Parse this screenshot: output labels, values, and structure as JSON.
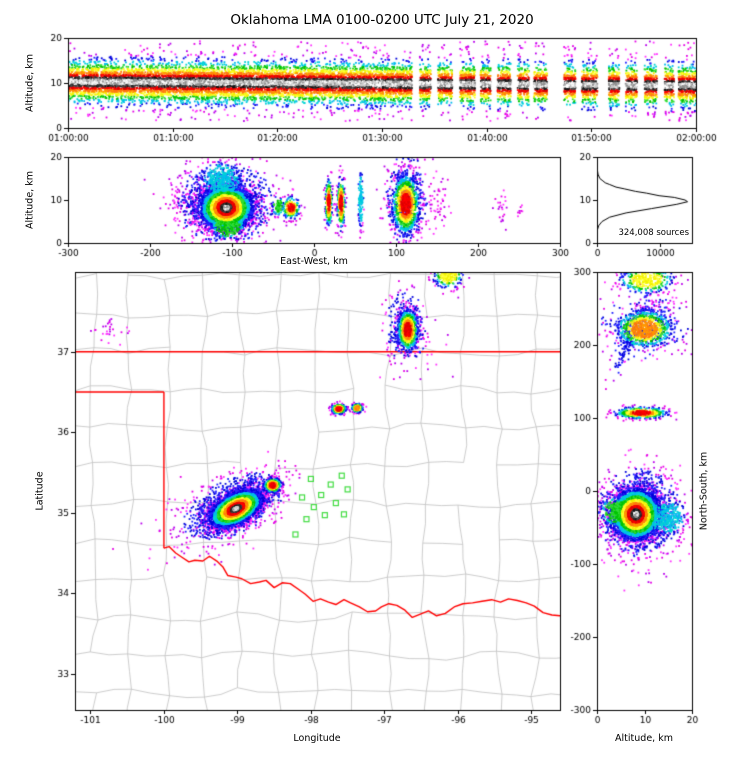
{
  "title": "Oklahoma LMA 0100-0200 UTC July 21, 2020",
  "labels": {
    "altitude_km": "Altitude, km",
    "east_west": "East-West, km",
    "latitude": "Latitude",
    "longitude": "Longitude",
    "north_south": "North-South, km",
    "sources": "324,008 sources"
  },
  "palette": {
    "levels": [
      [
        "#E600E6",
        "#BB00EE",
        "#FF33FF"
      ],
      [
        "#2222FF",
        "#0000DD"
      ],
      [
        "#00D5D5",
        "#00BBEE"
      ],
      [
        "#00C300",
        "#33DD33"
      ],
      [
        "#F2F200",
        "#FFFF33"
      ],
      [
        "#FF9900",
        "#FF7711"
      ],
      [
        "#FF0000",
        "#DD0000"
      ],
      [
        "#2E2E2E",
        "#111111",
        "#4A4A4A"
      ],
      [
        "#FFFFFF",
        "#CFCFCF",
        "#8F8F8F"
      ]
    ]
  },
  "chart_data": {
    "title": "Oklahoma LMA 0100-0200 UTC July 21, 2020",
    "figure_type": "lma-vhf-source-density-4panel",
    "panels": {
      "time_height": {
        "type": "scatter",
        "ylabel": "Altitude, km",
        "x_range": [
          0,
          1
        ],
        "x_tick_vals": [
          0,
          0.16667,
          0.33333,
          0.5,
          0.66667,
          0.83333,
          1
        ],
        "x_tick_labels": [
          "01:00:00",
          "01:10:00",
          "01:20:00",
          "01:30:00",
          "01:40:00",
          "01:50:00",
          "02:00:00"
        ],
        "y_range": [
          0,
          20
        ],
        "y_tick_vals": [
          0,
          10,
          20
        ],
        "y_tick_labels": [
          "0",
          "10",
          "20"
        ],
        "n_points": 15000,
        "band_center_start": 10.3,
        "band_center_drift": -0.9,
        "band_sigma": 2.15,
        "outlier_frac": 0.05,
        "outlier_frac_late": 0.09,
        "outlier_alt_range": [
          1.5,
          19.3
        ],
        "late_start": 0.55,
        "gaps": [
          [
            0.548,
            0.56
          ],
          [
            0.578,
            0.589
          ],
          [
            0.612,
            0.624
          ],
          [
            0.648,
            0.657
          ],
          [
            0.673,
            0.684
          ],
          [
            0.705,
            0.716
          ],
          [
            0.734,
            0.742
          ],
          [
            0.763,
            0.79
          ],
          [
            0.808,
            0.818
          ],
          [
            0.843,
            0.861
          ],
          [
            0.878,
            0.888
          ],
          [
            0.906,
            0.918
          ],
          [
            0.938,
            0.95
          ],
          [
            0.965,
            0.972
          ]
        ],
        "level_thresholds": [
          0.55,
          1.05,
          1.6,
          2.25,
          3.0,
          3.8,
          4.7,
          5.7
        ]
      },
      "east_west": {
        "type": "scatter",
        "xlabel": "East-West, km",
        "ylabel": "Altitude, km",
        "x_range": [
          -300,
          300
        ],
        "x_tick_vals": [
          -300,
          -200,
          -100,
          0,
          100,
          200,
          300
        ],
        "x_tick_labels": [
          "-300",
          "-200",
          "-100",
          "0",
          "100",
          "200",
          "300"
        ],
        "y_range": [
          0,
          20
        ],
        "y_tick_vals": [
          0,
          10,
          20
        ],
        "y_tick_labels": [
          "0",
          "10",
          "20"
        ],
        "clusters": [
          {
            "x": -107,
            "y": 8.2,
            "sx": 16,
            "sy": 2.5,
            "n": 4200,
            "peak": 8
          },
          {
            "x": -108,
            "y": 9.3,
            "sx": 28,
            "sy": 4.3,
            "n": 1200,
            "peak": 1
          },
          {
            "x": -113,
            "y": 14.6,
            "sx": 12,
            "sy": 2.0,
            "n": 380,
            "peak": 2
          },
          {
            "x": -105,
            "y": 4.0,
            "sx": 10,
            "sy": 1.6,
            "n": 300,
            "peak": 3
          },
          {
            "x": -160,
            "y": 9.5,
            "sx": 13,
            "sy": 2.6,
            "n": 60,
            "peak": 0
          },
          {
            "x": -28,
            "y": 8.2,
            "sx": 5.5,
            "sy": 1.3,
            "n": 200,
            "peak": 6
          },
          {
            "x": -44,
            "y": 8.6,
            "sx": 3.5,
            "sy": 1.1,
            "n": 80,
            "peak": 3
          },
          {
            "x": 18,
            "y": 9.4,
            "sx": 2.2,
            "sy": 2.8,
            "n": 260,
            "peak": 6
          },
          {
            "x": 33,
            "y": 9.2,
            "sx": 2.4,
            "sy": 3.0,
            "n": 300,
            "peak": 6
          },
          {
            "x": 57,
            "y": 10.0,
            "sx": 1.6,
            "sy": 3.2,
            "n": 110,
            "peak": 2
          },
          {
            "x": 112,
            "y": 9.0,
            "sx": 8.5,
            "sy": 3.6,
            "n": 1100,
            "peak": 6
          },
          {
            "x": 113,
            "y": 10.0,
            "sx": 12,
            "sy": 5.0,
            "n": 380,
            "peak": 1
          },
          {
            "x": 152,
            "y": 10,
            "sx": 6,
            "sy": 3,
            "n": 46,
            "peak": 0
          },
          {
            "x": 230,
            "y": 8,
            "sx": 4,
            "sy": 2,
            "n": 22,
            "peak": 0
          },
          {
            "x": 252,
            "y": 7.5,
            "sx": 2,
            "sy": 1,
            "n": 8,
            "peak": 0
          }
        ]
      },
      "histogram": {
        "type": "line",
        "x_range": [
          0,
          15000
        ],
        "x_tick_vals": [
          0,
          10000
        ],
        "x_tick_labels": [
          "0",
          "10000"
        ],
        "y_range": [
          0,
          20
        ],
        "y_tick_vals": [
          0,
          10,
          20
        ],
        "y_tick_labels": [
          "0",
          "10",
          "20"
        ],
        "total_sources": 324008,
        "annotation": "324,008 sources",
        "profile": [
          [
            0,
            0
          ],
          [
            1,
            0
          ],
          [
            2,
            15
          ],
          [
            3,
            60
          ],
          [
            4,
            250
          ],
          [
            5,
            800
          ],
          [
            6,
            2000
          ],
          [
            7,
            4600
          ],
          [
            8,
            8600
          ],
          [
            9,
            12600
          ],
          [
            9.6,
            14300
          ],
          [
            10,
            13900
          ],
          [
            10.6,
            12200
          ],
          [
            11,
            9800
          ],
          [
            11.6,
            7800
          ],
          [
            12,
            6100
          ],
          [
            12.6,
            4300
          ],
          [
            13,
            3000
          ],
          [
            13.6,
            2000
          ],
          [
            14,
            1300
          ],
          [
            14.6,
            800
          ],
          [
            15,
            450
          ],
          [
            16,
            160
          ],
          [
            17,
            60
          ],
          [
            18,
            25
          ],
          [
            19,
            8
          ],
          [
            20,
            0
          ]
        ]
      },
      "plan_view": {
        "type": "scatter",
        "xlabel": "Longitude",
        "ylabel": "Latitude",
        "x_range": [
          -101.21,
          -94.61
        ],
        "x_tick_vals": [
          -101,
          -100,
          -99,
          -98,
          -97,
          -96,
          -95
        ],
        "x_tick_labels": [
          "-101",
          "-100",
          "-99",
          "-98",
          "-97",
          "-96",
          "-95"
        ],
        "y_range": [
          32.55,
          37.99
        ],
        "y_tick_vals": [
          33,
          34,
          35,
          36,
          37
        ],
        "y_tick_labels": [
          "33",
          "34",
          "35",
          "36",
          "37"
        ],
        "clusters": [
          {
            "x": -99.02,
            "y": 35.05,
            "sx": 0.17,
            "sy": 0.095,
            "n": 5200,
            "peak": 8,
            "syx": 0.33
          },
          {
            "x": -99.05,
            "y": 35.08,
            "sx": 0.32,
            "sy": 0.17,
            "n": 1200,
            "peak": 1,
            "syx": 0.3
          },
          {
            "x": -98.52,
            "y": 35.34,
            "sx": 0.06,
            "sy": 0.045,
            "n": 400,
            "peak": 6
          },
          {
            "x": -96.68,
            "y": 37.27,
            "sx": 0.07,
            "sy": 0.13,
            "n": 850,
            "peak": 6
          },
          {
            "x": -96.7,
            "y": 37.3,
            "sx": 0.13,
            "sy": 0.21,
            "n": 300,
            "peak": 1
          },
          {
            "x": -97.62,
            "y": 36.29,
            "sx": 0.05,
            "sy": 0.033,
            "n": 240,
            "peak": 6
          },
          {
            "x": -97.37,
            "y": 36.3,
            "sx": 0.038,
            "sy": 0.028,
            "n": 150,
            "peak": 5
          },
          {
            "x": -96.13,
            "y": 37.95,
            "sx": 0.1,
            "sy": 0.08,
            "n": 260,
            "peak": 4
          },
          {
            "x": -100.72,
            "y": 37.28,
            "sx": 0.13,
            "sy": 0.1,
            "n": 28,
            "peak": 0
          },
          {
            "x": -96.55,
            "y": 36.95,
            "sx": 0.25,
            "sy": 0.18,
            "n": 16,
            "peak": 0
          },
          {
            "x": -99.4,
            "y": 34.9,
            "sx": 0.5,
            "sy": 0.3,
            "n": 60,
            "peak": 0,
            "syx": 0.3
          }
        ],
        "stations": [
          [
            -98.21,
            34.73
          ],
          [
            -98.06,
            34.92
          ],
          [
            -97.96,
            35.07
          ],
          [
            -98.12,
            35.19
          ],
          [
            -97.86,
            35.22
          ],
          [
            -97.73,
            35.35
          ],
          [
            -97.58,
            35.46
          ],
          [
            -97.5,
            35.29
          ],
          [
            -97.66,
            35.12
          ],
          [
            -97.81,
            34.97
          ],
          [
            -97.55,
            34.98
          ],
          [
            -98.0,
            35.42
          ]
        ],
        "state_borders": [
          [
            [
              -101.21,
              37.0
            ],
            [
              -94.61,
              37.0
            ]
          ],
          [
            [
              -101.21,
              36.5
            ],
            [
              -100.0,
              36.5
            ]
          ],
          [
            [
              -100.0,
              36.5
            ],
            [
              -100.0,
              34.56
            ]
          ],
          [
            [
              -100.0,
              34.56
            ],
            [
              -99.93,
              34.58
            ],
            [
              -99.84,
              34.5
            ],
            [
              -99.76,
              34.45
            ],
            [
              -99.66,
              34.39
            ],
            [
              -99.58,
              34.41
            ],
            [
              -99.47,
              34.4
            ],
            [
              -99.38,
              34.46
            ],
            [
              -99.28,
              34.4
            ],
            [
              -99.2,
              34.33
            ],
            [
              -99.13,
              34.22
            ],
            [
              -99.02,
              34.2
            ],
            [
              -98.94,
              34.18
            ],
            [
              -98.82,
              34.12
            ],
            [
              -98.7,
              34.14
            ],
            [
              -98.61,
              34.16
            ],
            [
              -98.5,
              34.07
            ],
            [
              -98.39,
              34.13
            ],
            [
              -98.28,
              34.12
            ],
            [
              -98.17,
              34.05
            ],
            [
              -98.08,
              33.99
            ],
            [
              -97.97,
              33.9
            ],
            [
              -97.87,
              33.93
            ],
            [
              -97.76,
              33.89
            ],
            [
              -97.66,
              33.86
            ],
            [
              -97.55,
              33.92
            ],
            [
              -97.46,
              33.88
            ],
            [
              -97.34,
              33.83
            ],
            [
              -97.23,
              33.77
            ],
            [
              -97.12,
              33.78
            ],
            [
              -97.04,
              33.83
            ],
            [
              -96.94,
              33.87
            ],
            [
              -96.83,
              33.85
            ],
            [
              -96.72,
              33.79
            ],
            [
              -96.62,
              33.7
            ],
            [
              -96.51,
              33.74
            ],
            [
              -96.4,
              33.78
            ],
            [
              -96.29,
              33.72
            ],
            [
              -96.17,
              33.75
            ],
            [
              -96.05,
              33.83
            ],
            [
              -95.93,
              33.87
            ],
            [
              -95.8,
              33.88
            ],
            [
              -95.67,
              33.9
            ],
            [
              -95.54,
              33.92
            ],
            [
              -95.42,
              33.89
            ],
            [
              -95.31,
              33.93
            ],
            [
              -95.19,
              33.91
            ],
            [
              -95.07,
              33.88
            ],
            [
              -94.96,
              33.84
            ],
            [
              -94.84,
              33.76
            ],
            [
              -94.72,
              33.73
            ],
            [
              -94.61,
              33.72
            ]
          ]
        ],
        "county_grid": {
          "seed": 999,
          "lon_start": -101.45,
          "lon_step": 0.5,
          "cols": 15,
          "lat_start": 32.3,
          "lat_step": 0.47,
          "rows": 14,
          "jitter": 0.12,
          "skip_prob": 0.07
        }
      },
      "north_south": {
        "type": "scatter",
        "xlabel": "Altitude, km",
        "ylabel": "North-South, km",
        "x_range": [
          0,
          20
        ],
        "x_tick_vals": [
          0,
          10,
          20
        ],
        "x_tick_labels": [
          "0",
          "10",
          "20"
        ],
        "y_range": [
          -300,
          300
        ],
        "y_tick_vals": [
          -300,
          -200,
          -100,
          0,
          100,
          200,
          300
        ],
        "y_tick_labels": [
          "-300",
          "-200",
          "-100",
          "0",
          "100",
          "200",
          "300"
        ],
        "clusters": [
          {
            "x": 8.2,
            "y": -32,
            "sx": 2.5,
            "sy": 17,
            "n": 4200,
            "peak": 8
          },
          {
            "x": 8.8,
            "y": -30,
            "sx": 4.2,
            "sy": 28,
            "n": 1200,
            "peak": 1
          },
          {
            "x": 14.6,
            "y": -36,
            "sx": 2.0,
            "sy": 12,
            "n": 350,
            "peak": 2
          },
          {
            "x": 4.0,
            "y": -28,
            "sx": 1.6,
            "sy": 10,
            "n": 280,
            "peak": 3
          },
          {
            "x": 9.4,
            "y": 107,
            "sx": 2.8,
            "sy": 4.0,
            "n": 420,
            "peak": 6
          },
          {
            "x": 10.0,
            "y": 222,
            "sx": 3.0,
            "sy": 13,
            "n": 800,
            "peak": 5
          },
          {
            "x": 10.0,
            "y": 225,
            "sx": 4.3,
            "sy": 20,
            "n": 280,
            "peak": 1
          },
          {
            "x": 7.5,
            "y": 215,
            "sx": 0.9,
            "sy": 28,
            "n": 160,
            "peak": 1,
            "sxy": 0.07
          },
          {
            "x": 10.5,
            "y": 289,
            "sx": 2.8,
            "sy": 9,
            "n": 380,
            "peak": 4
          },
          {
            "x": 12,
            "y": 256,
            "sx": 2.5,
            "sy": 6,
            "n": 30,
            "peak": 0
          },
          {
            "x": 9,
            "y": -120,
            "sx": 3,
            "sy": 8,
            "n": 10,
            "peak": 0
          }
        ]
      }
    }
  }
}
